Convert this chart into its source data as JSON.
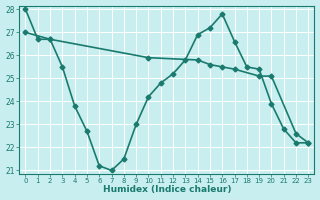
{
  "series1_x": [
    0,
    1,
    2,
    3,
    4,
    5,
    6,
    7,
    8,
    9,
    10,
    11,
    12,
    13,
    14,
    15,
    16,
    17,
    18,
    19,
    20,
    21,
    22,
    23
  ],
  "series1_y": [
    28.0,
    26.7,
    26.7,
    25.5,
    23.8,
    22.7,
    21.2,
    21.0,
    21.5,
    23.0,
    24.2,
    24.8,
    25.2,
    25.8,
    26.9,
    27.2,
    27.8,
    26.6,
    25.5,
    25.4,
    23.9,
    22.8,
    22.2,
    22.2
  ],
  "series2_x": [
    0,
    2,
    10,
    14,
    15,
    16,
    17,
    19,
    20,
    22,
    23
  ],
  "series2_y": [
    27.0,
    26.7,
    25.9,
    25.8,
    25.6,
    25.5,
    25.4,
    25.1,
    25.1,
    22.6,
    22.2
  ],
  "color": "#1a7a6e",
  "bg_color": "#c8eef0",
  "grid_color": "#ffffff",
  "xlabel": "Humidex (Indice chaleur)",
  "ylim": [
    21,
    28
  ],
  "xlim": [
    -0.5,
    23.5
  ],
  "yticks": [
    21,
    22,
    23,
    24,
    25,
    26,
    27,
    28
  ],
  "xticks": [
    0,
    1,
    2,
    3,
    4,
    5,
    6,
    7,
    8,
    9,
    10,
    11,
    12,
    13,
    14,
    15,
    16,
    17,
    18,
    19,
    20,
    21,
    22,
    23
  ],
  "marker": "D",
  "marker_size": 2.5,
  "linewidth": 1.2
}
